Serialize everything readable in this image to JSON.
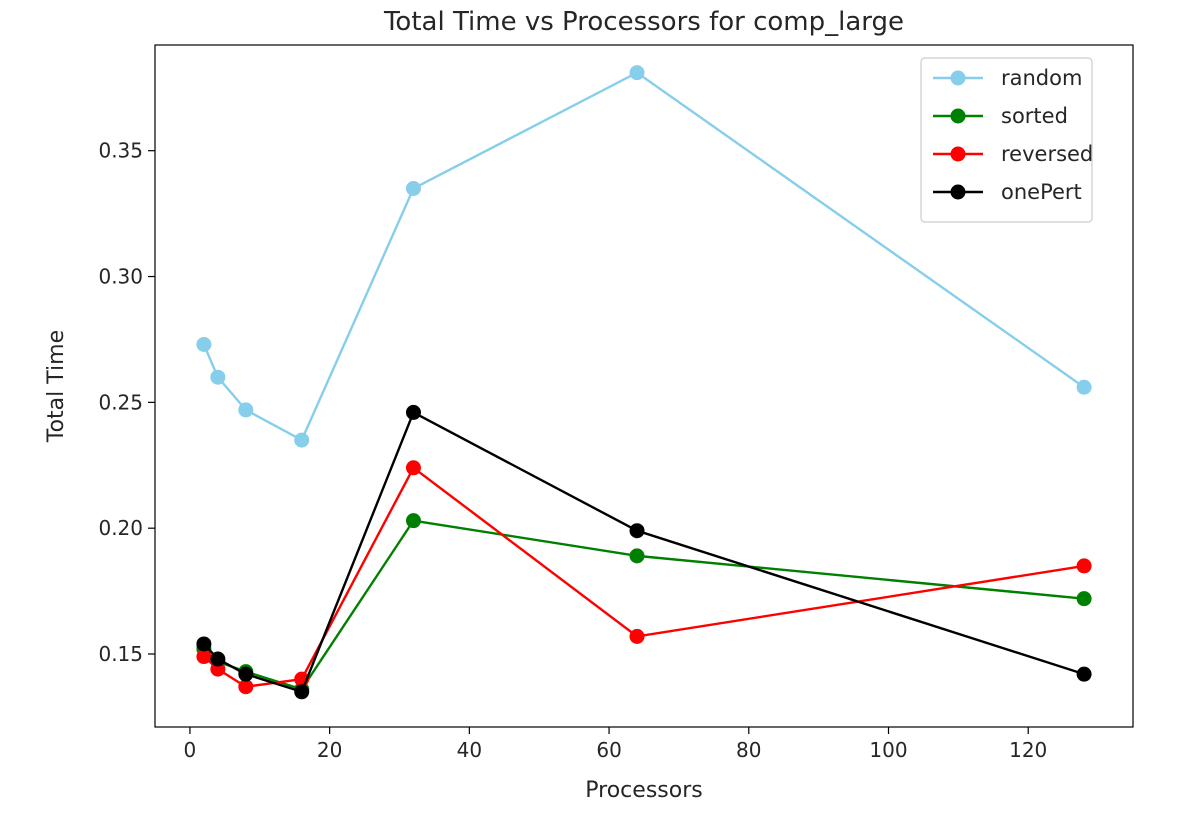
{
  "chart_data": {
    "type": "line",
    "title": "Total Time vs Processors for comp_large",
    "xlabel": "Processors",
    "ylabel": "Total Time",
    "xlim": [
      -5,
      135
    ],
    "ylim": [
      0.121,
      0.392
    ],
    "xticks": [
      {
        "value": 0,
        "label": "0"
      },
      {
        "value": 20,
        "label": "20"
      },
      {
        "value": 40,
        "label": "40"
      },
      {
        "value": 60,
        "label": "60"
      },
      {
        "value": 80,
        "label": "80"
      },
      {
        "value": 100,
        "label": "100"
      },
      {
        "value": 120,
        "label": "120"
      }
    ],
    "yticks": [
      {
        "value": 0.15,
        "label": "0.15"
      },
      {
        "value": 0.2,
        "label": "0.20"
      },
      {
        "value": 0.25,
        "label": "0.25"
      },
      {
        "value": 0.3,
        "label": "0.30"
      },
      {
        "value": 0.35,
        "label": "0.35"
      }
    ],
    "grid": false,
    "legend_position": "top-right",
    "x": [
      2,
      4,
      8,
      16,
      32,
      64,
      128
    ],
    "series": [
      {
        "name": "random",
        "color": "#87ceeb",
        "values": [
          0.273,
          0.26,
          0.247,
          0.235,
          0.335,
          0.381,
          0.256
        ]
      },
      {
        "name": "sorted",
        "color": "#008000",
        "values": [
          0.152,
          0.147,
          0.143,
          0.136,
          0.203,
          0.189,
          0.172
        ]
      },
      {
        "name": "reversed",
        "color": "#ff0000",
        "values": [
          0.149,
          0.144,
          0.137,
          0.14,
          0.224,
          0.157,
          0.185
        ]
      },
      {
        "name": "onePert",
        "color": "#000000",
        "values": [
          0.154,
          0.148,
          0.142,
          0.135,
          0.246,
          0.199,
          0.142
        ]
      }
    ]
  }
}
